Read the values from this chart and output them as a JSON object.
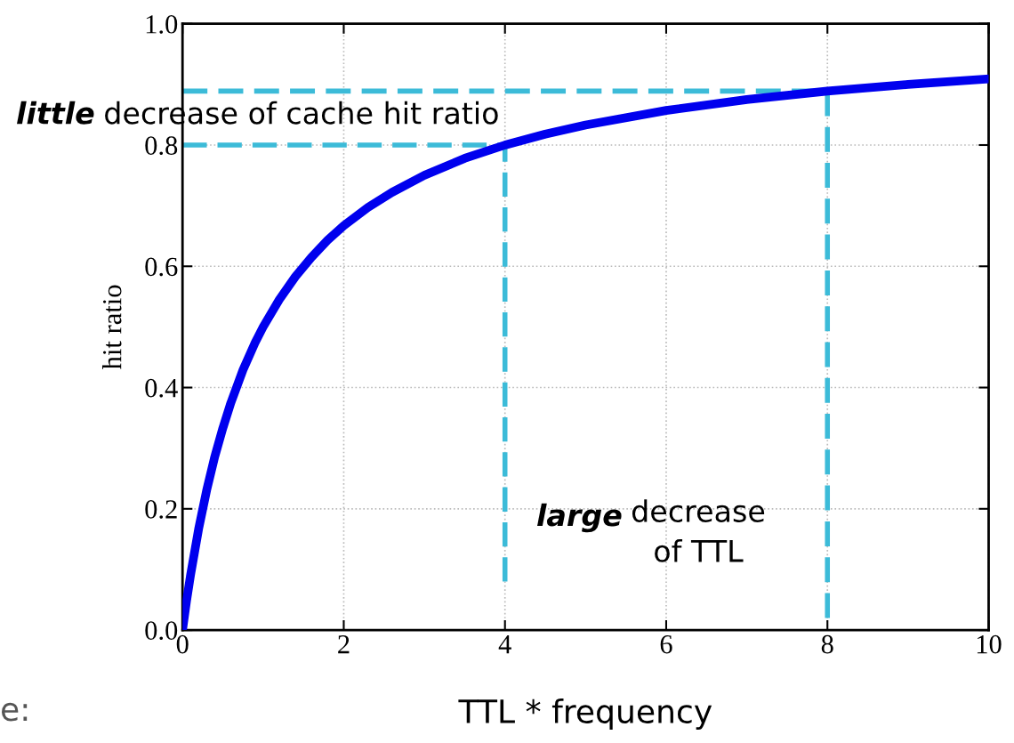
{
  "chart_data": {
    "type": "line",
    "xlabel": "TTL * frequency",
    "ylabel": "hit ratio",
    "xlim": [
      0,
      10
    ],
    "ylim": [
      0,
      1.0
    ],
    "xticks": [
      0,
      2,
      4,
      6,
      8,
      10
    ],
    "yticks": [
      {
        "value": 0,
        "label": "0.0"
      },
      {
        "value": 0.2,
        "label": "0.2"
      },
      {
        "value": 0.4,
        "label": "0.4"
      },
      {
        "value": 0.6,
        "label": "0.6"
      },
      {
        "value": 0.8,
        "label": "0.8"
      },
      {
        "value": 1.0,
        "label": "1.0"
      }
    ],
    "grid": true,
    "marker": "none",
    "series": [
      {
        "color": "#0000ee",
        "line_style": "solid",
        "x": [
          0,
          0.05,
          0.1,
          0.2,
          0.3,
          0.4,
          0.5,
          0.6,
          0.75,
          0.9,
          1,
          1.2,
          1.4,
          1.6,
          1.8,
          2,
          2.3,
          2.6,
          3,
          3.5,
          4,
          4.5,
          5,
          6,
          7,
          8,
          9,
          10
        ],
        "values": [
          0,
          0.048,
          0.091,
          0.167,
          0.231,
          0.286,
          0.333,
          0.375,
          0.429,
          0.474,
          0.5,
          0.545,
          0.583,
          0.615,
          0.643,
          0.667,
          0.697,
          0.722,
          0.75,
          0.778,
          0.8,
          0.818,
          0.833,
          0.857,
          0.875,
          0.889,
          0.9,
          0.909
        ]
      },
      {
        "color": "#3cbbd8",
        "line_style": "dashed",
        "x": [
          0,
          4,
          4
        ],
        "values": [
          0.8,
          0.8,
          0.08
        ]
      },
      {
        "color": "#3cbbd8",
        "line_style": "dashed",
        "x": [
          0,
          8,
          8
        ],
        "values": [
          0.889,
          0.889,
          0.02
        ]
      }
    ],
    "annotations": [
      "little decrease of cache hit ratio",
      "large decrease\nof TTL",
      "e:"
    ]
  }
}
